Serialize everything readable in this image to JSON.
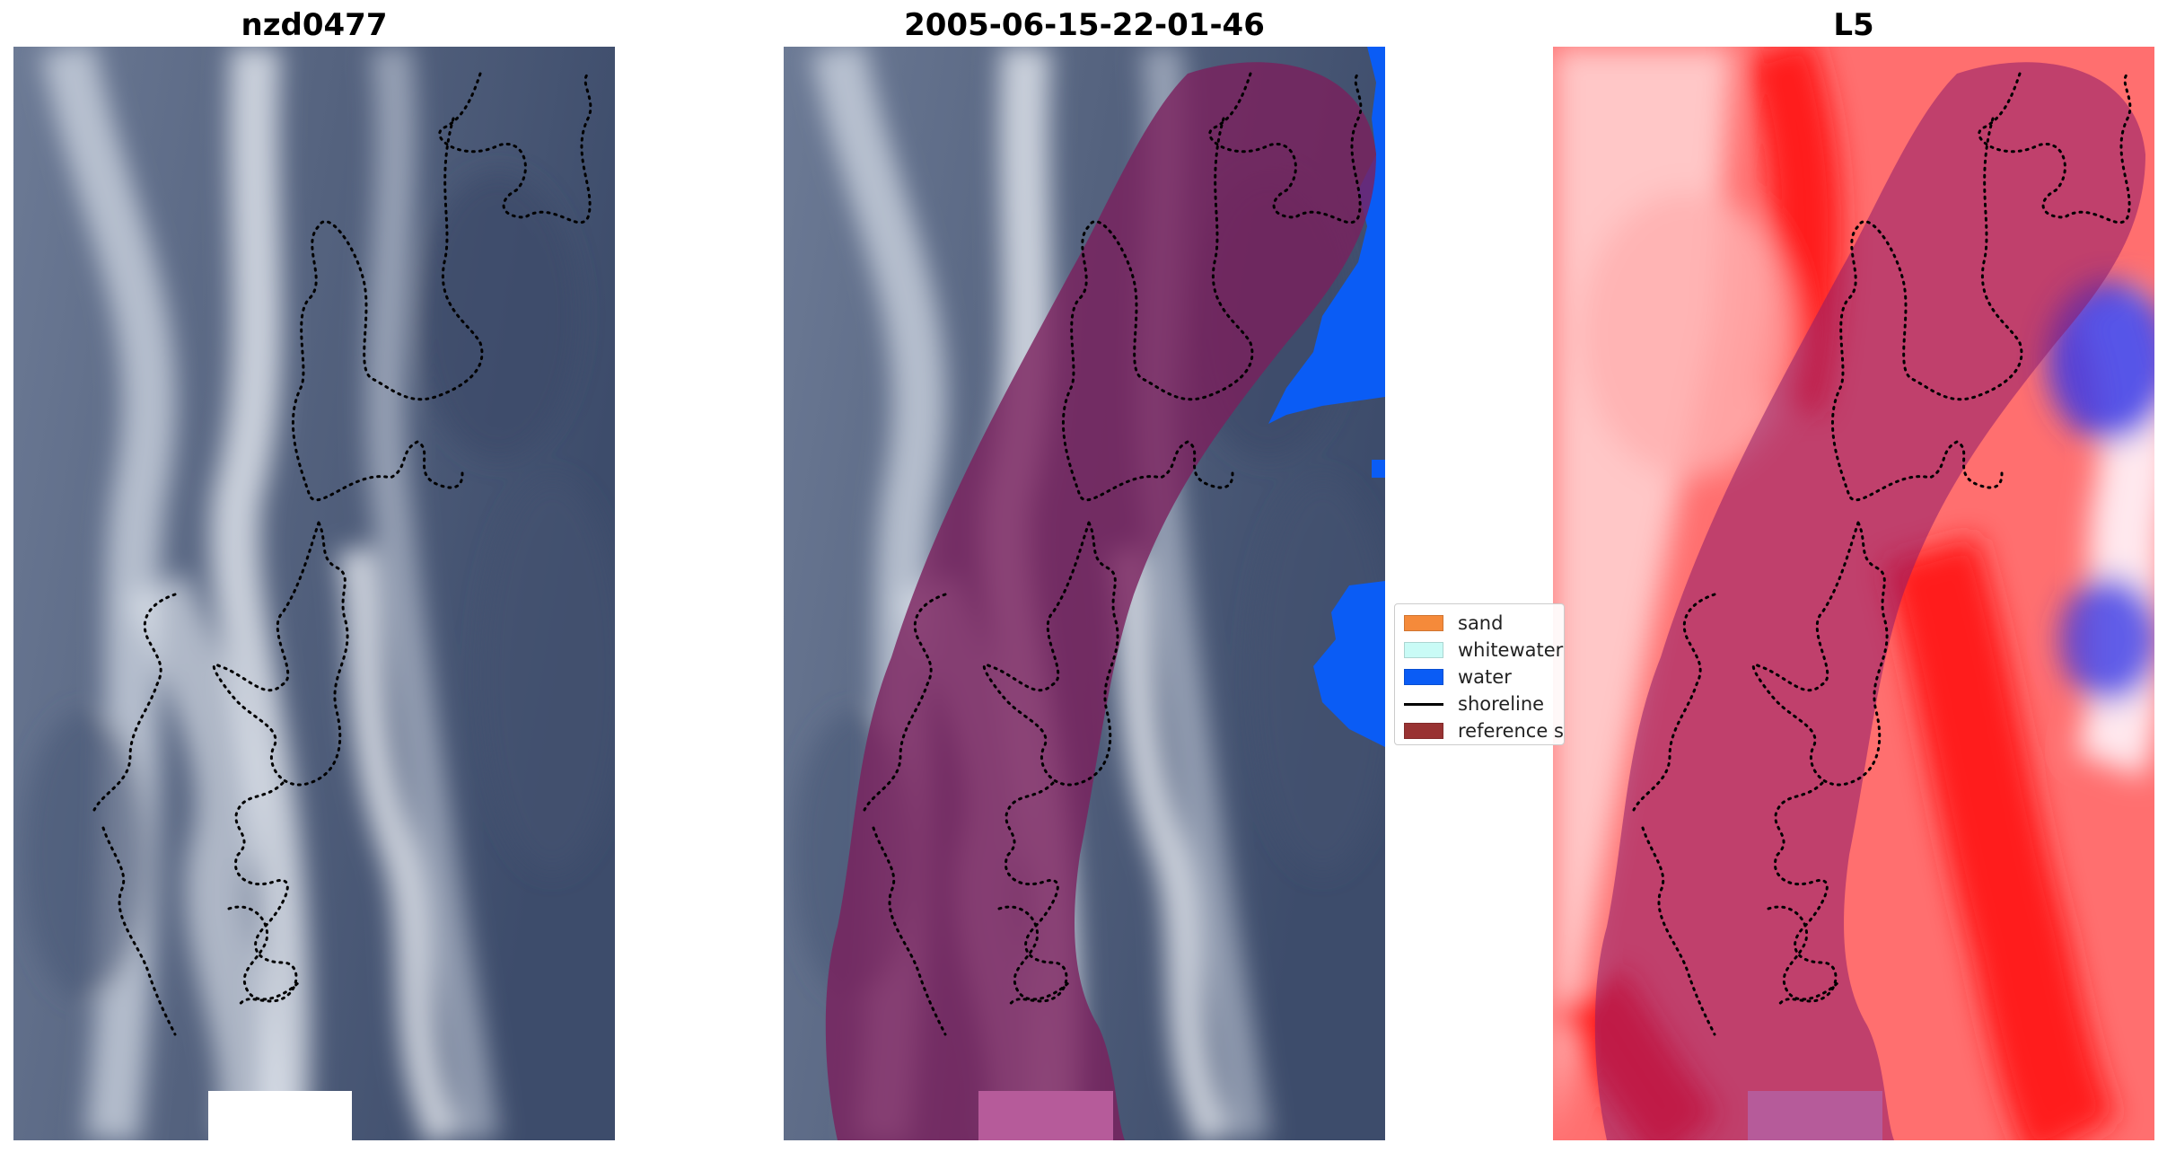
{
  "panels": [
    {
      "title": "nzd0477"
    },
    {
      "title": "2005-06-15-22-01-46"
    },
    {
      "title": "L5"
    }
  ],
  "legend": {
    "items": [
      {
        "label": "sand",
        "kind": "patch",
        "color": "#f58a3a"
      },
      {
        "label": "whitewater",
        "kind": "patch",
        "color": "#c9fbf6"
      },
      {
        "label": "water",
        "kind": "patch",
        "color": "#0a5cf5"
      },
      {
        "label": "shoreline",
        "kind": "line",
        "color": "#000000"
      },
      {
        "label": "reference shoreline buffer",
        "kind": "patch",
        "color": "#993333"
      }
    ]
  },
  "colors": {
    "satellite_dark": "#3d4c6b",
    "satellite_light": "#e6ebf2",
    "buffer_overlay": "#7a1f5c",
    "water_mask": "#0a5cf5",
    "diverging_red": "#ff1a1a",
    "diverging_blue": "#2a2ae0"
  }
}
